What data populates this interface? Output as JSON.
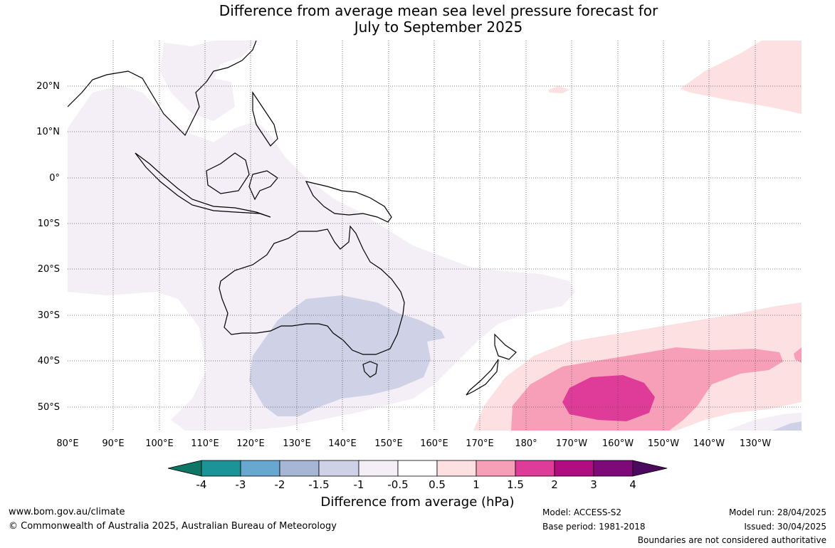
{
  "title_line1": "Difference from average mean sea level pressure forecast for",
  "title_line2": "July to September 2025",
  "lon_labels": [
    "80°E",
    "90°E",
    "100°E",
    "110°E",
    "120°E",
    "130°E",
    "140°E",
    "150°E",
    "160°E",
    "170°E",
    "180°",
    "170°W",
    "160°W",
    "150°W",
    "140°W",
    "130°W"
  ],
  "lat_labels": [
    "20°N",
    "10°N",
    "0°",
    "10°S",
    "20°S",
    "30°S",
    "40°S",
    "50°S"
  ],
  "colorbar": {
    "ticks": [
      "-4",
      "-3",
      "-2",
      "-1.5",
      "-1",
      "-0.5",
      "0.5",
      "1",
      "1.5",
      "2",
      "3",
      "4"
    ],
    "colors": [
      "#0f7565",
      "#1b9397",
      "#68a8d0",
      "#a7b6d5",
      "#cfd2e6",
      "#f4eef6",
      "#ffffff",
      "#fde0e1",
      "#f79fb9",
      "#df3b98",
      "#b10c82",
      "#7e0a7a",
      "#4c0a5e"
    ],
    "title": "Difference from average (hPa)"
  },
  "footer": {
    "url": "www.bom.gov.au/climate",
    "copyright": "© Commonwealth of Australia 2025, Australian Bureau of Meteorology",
    "model": "Model: ACCESS-S2",
    "base_period": "Base period: 1981-2018",
    "model_run": "Model run: 28/04/2025",
    "issued": "Issued: 30/04/2025",
    "disclaimer": "Boundaries are not considered authoritative"
  },
  "map_colors": {
    "neg_light": "#f4eef6",
    "neg_mid": "#cfd2e6",
    "pos_light": "#fde0e1",
    "pos_mid": "#f79fb9",
    "pos_strong": "#df3b98",
    "coast": "#000000",
    "border": "#888888",
    "grid": "#555555"
  }
}
